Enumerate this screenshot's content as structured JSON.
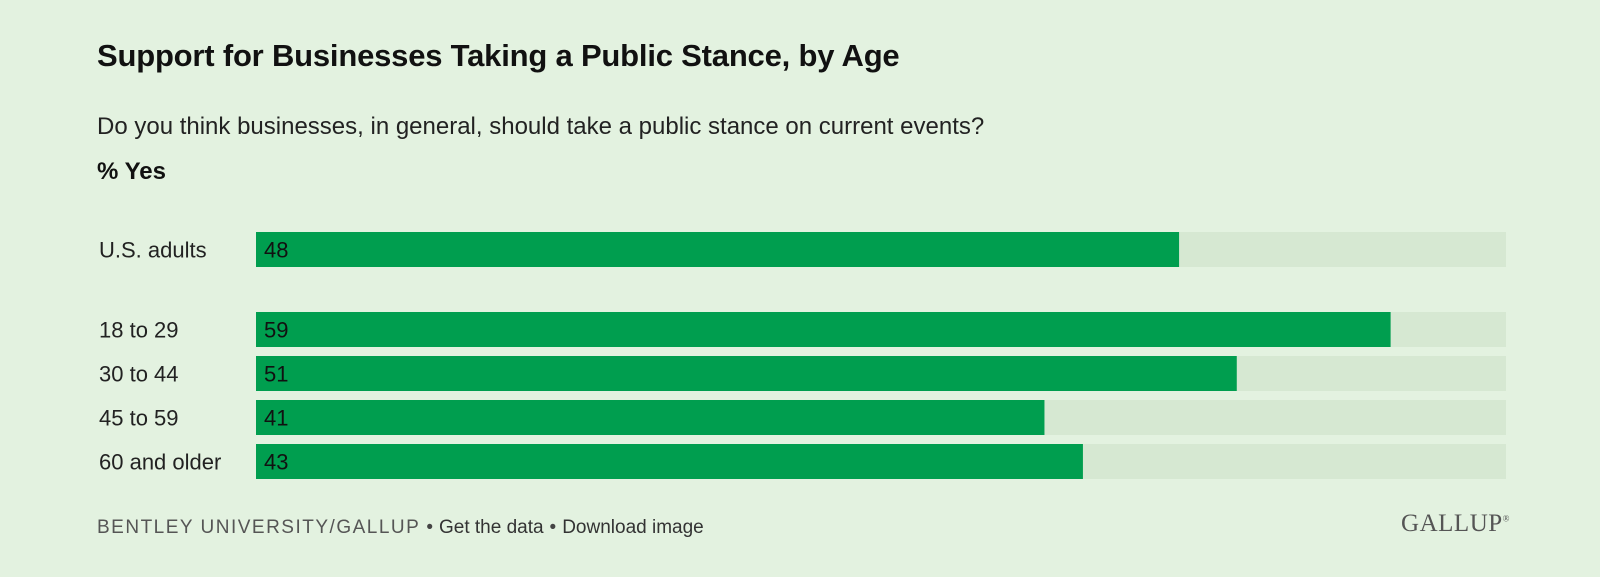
{
  "header": {
    "title": "Support for Businesses Taking a Public Stance, by Age",
    "subtitle": "Do you think businesses, in general, should take a public stance on current events?",
    "measure": "% Yes"
  },
  "chart_data": {
    "type": "bar",
    "orientation": "horizontal",
    "title": "Support for Businesses Taking a Public Stance, by Age",
    "categories": [
      "U.S. adults",
      "18 to 29",
      "30 to 44",
      "45 to 59",
      "60 and older"
    ],
    "values": [
      48,
      59,
      51,
      41,
      43
    ],
    "series": [
      {
        "values": [
          48,
          59,
          51,
          41,
          43
        ]
      }
    ],
    "xlim": [
      0,
      65
    ],
    "data_labels": true,
    "grid": false,
    "colors": {
      "bar": "#009e4f",
      "track": "#d6e8d2",
      "background": "#e3f2e0"
    }
  },
  "footer": {
    "source": "BENTLEY UNIVERSITY/GALLUP",
    "separator": "•",
    "get_data": "Get the data",
    "download": "Download image",
    "logo": "GALLUP",
    "logo_mark": "®"
  }
}
